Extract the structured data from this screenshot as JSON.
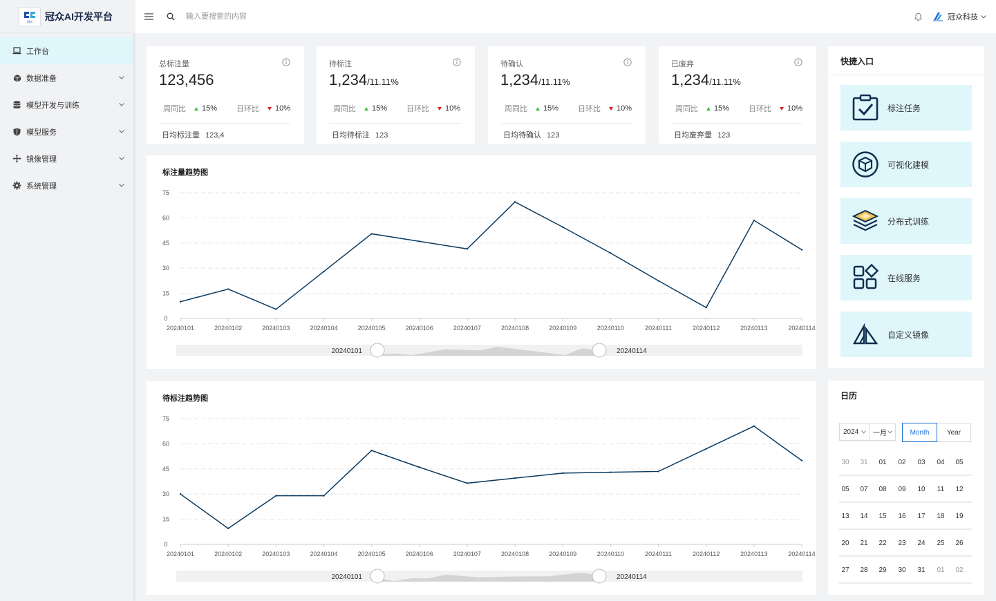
{
  "app": {
    "title": "冠众AI开发平台",
    "logo_text": "冠众"
  },
  "sidebar": {
    "items": [
      {
        "label": "工作台",
        "icon": "laptop-icon",
        "active": true
      },
      {
        "label": "数据准备",
        "icon": "cube-icon"
      },
      {
        "label": "模型开发与训练",
        "icon": "database-icon"
      },
      {
        "label": "模型服务",
        "icon": "shield-icon"
      },
      {
        "label": "镜像管理",
        "icon": "move-icon"
      },
      {
        "label": "系统管理",
        "icon": "gear-icon"
      }
    ]
  },
  "header": {
    "search_placeholder": "输入要搜索的内容",
    "user_name": "冠众科技"
  },
  "stats": [
    {
      "title": "总标注量",
      "value": "123,456",
      "sub": "",
      "week_label": "周同比",
      "week_pct": "15%",
      "day_label": "日环比",
      "day_pct": "10%",
      "foot_label": "日均标注量",
      "foot_value": "123,4"
    },
    {
      "title": "待标注",
      "value": "1,234",
      "sub": "/11.11%",
      "week_label": "周同比",
      "week_pct": "15%",
      "day_label": "日环比",
      "day_pct": "10%",
      "foot_label": "日均待标注",
      "foot_value": "123"
    },
    {
      "title": "待确认",
      "value": "1,234",
      "sub": "/11.11%",
      "week_label": "周同比",
      "week_pct": "15%",
      "day_label": "日环比",
      "day_pct": "10%",
      "foot_label": "日均待确认",
      "foot_value": "123"
    },
    {
      "title": "已废弃",
      "value": "1,234",
      "sub": "/11.11%",
      "week_label": "周同比",
      "week_pct": "15%",
      "day_label": "日环比",
      "day_pct": "10%",
      "foot_label": "日均废弃量",
      "foot_value": "123"
    }
  ],
  "quick_entry": {
    "title": "快捷入口",
    "items": [
      {
        "label": "标注任务",
        "icon": "clipboard-check-icon"
      },
      {
        "label": "可视化建模",
        "icon": "cube-circle-icon"
      },
      {
        "label": "分布式训练",
        "icon": "layers-icon"
      },
      {
        "label": "在线服务",
        "icon": "apps-icon"
      },
      {
        "label": "自定义镜像",
        "icon": "sail-icon"
      }
    ]
  },
  "calendar": {
    "title": "日历",
    "year": "2024",
    "month": "一月",
    "mode_month": "Month",
    "mode_year": "Year",
    "weeks": [
      [
        "30",
        "31",
        "01",
        "02",
        "03",
        "04",
        "05"
      ],
      [
        "05",
        "07",
        "08",
        "09",
        "10",
        "11",
        "12"
      ],
      [
        "13",
        "14",
        "15",
        "16",
        "17",
        "18",
        "19"
      ],
      [
        "20",
        "21",
        "22",
        "23",
        "24",
        "25",
        "26"
      ],
      [
        "27",
        "28",
        "29",
        "30",
        "31",
        "01",
        "02"
      ]
    ]
  },
  "colors": {
    "line": "#0b3a60",
    "accent": "#1f6fd6",
    "tile_bg": "#dff6fb"
  },
  "chart_data": [
    {
      "type": "line",
      "title": "标注量趋势图",
      "categories": [
        "20240101",
        "20240102",
        "20240103",
        "20240104",
        "20240105",
        "20240106",
        "20240107",
        "20240108",
        "20240109",
        "20240110",
        "20240111",
        "20240112",
        "20240113",
        "20240114"
      ],
      "series": [
        {
          "values": [
            10,
            17.5,
            5.5,
            28,
            50.5,
            46,
            41.5,
            69.5,
            54.5,
            39,
            22.5,
            6.5,
            58.5,
            41
          ]
        }
      ],
      "yticks": [
        0,
        15,
        30,
        45,
        60,
        75
      ],
      "ylim": [
        0,
        75
      ],
      "zoom_start_label": "20240101",
      "zoom_end_label": "20240114"
    },
    {
      "type": "line",
      "title": "待标注趋势图",
      "categories": [
        "20240101",
        "20240102",
        "20240103",
        "20240104",
        "20240105",
        "20240106",
        "20240107",
        "20240108",
        "20240109",
        "20240110",
        "20240111",
        "20240112",
        "20240113",
        "20240114"
      ],
      "series": [
        {
          "values": [
            30,
            9.5,
            29,
            29,
            56,
            46,
            36.5,
            39.5,
            42.5,
            43,
            43.5,
            57,
            70.5,
            50
          ]
        }
      ],
      "yticks": [
        0,
        15,
        30,
        45,
        60,
        75
      ],
      "ylim": [
        0,
        75
      ],
      "zoom_start_label": "20240101",
      "zoom_end_label": "20240114"
    }
  ]
}
